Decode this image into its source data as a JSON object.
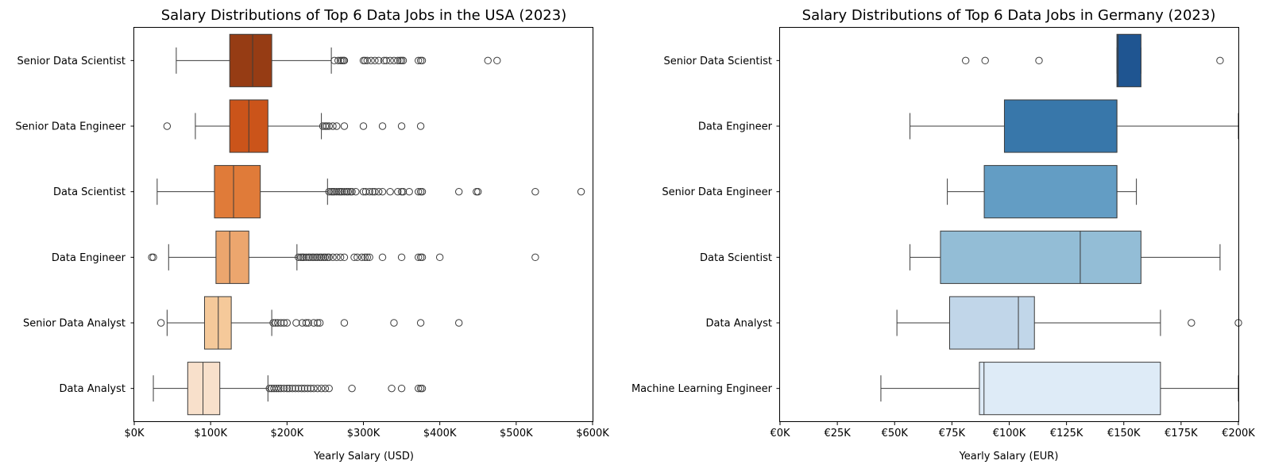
{
  "chart_data": [
    {
      "type": "boxplot",
      "title": "Salary Distributions of Top 6 Data Jobs in the USA (2023)",
      "xlabel": "Yearly Salary (USD)",
      "ylabel": "",
      "xlim": [
        0,
        600000
      ],
      "xticks": [
        0,
        100000,
        200000,
        300000,
        400000,
        500000,
        600000
      ],
      "xtick_labels": [
        "$0K",
        "$100K",
        "$200K",
        "$300K",
        "$400K",
        "$500K",
        "$600K"
      ],
      "grid": false,
      "boxes": [
        {
          "category": "Senior Data Scientist",
          "color": "#963c14",
          "whisker_low": 55000,
          "q1": 125000,
          "median": 155000,
          "q3": 180000,
          "whisker_high": 258000,
          "outliers": [
            262000,
            267000,
            270000,
            272000,
            274000,
            275000,
            300000,
            302000,
            305000,
            310000,
            315000,
            320000,
            327000,
            330000,
            335000,
            340000,
            345000,
            348000,
            350000,
            352000,
            372000,
            375000,
            377000,
            463000,
            475000
          ]
        },
        {
          "category": "Senior Data Engineer",
          "color": "#cb541a",
          "whisker_low": 80000,
          "q1": 125000,
          "median": 150000,
          "q3": 175000,
          "whisker_high": 245000,
          "outliers": [
            43000,
            247000,
            250000,
            252000,
            255000,
            260000,
            265000,
            275000,
            300000,
            325000,
            350000,
            375000
          ]
        },
        {
          "category": "Data Scientist",
          "color": "#e07b39",
          "whisker_low": 30000,
          "q1": 105000,
          "median": 130000,
          "q3": 165000,
          "whisker_high": 253000,
          "outliers": [
            255000,
            258000,
            260000,
            262000,
            265000,
            268000,
            270000,
            272000,
            275000,
            278000,
            280000,
            283000,
            285000,
            290000,
            300000,
            303000,
            308000,
            312000,
            315000,
            320000,
            325000,
            335000,
            345000,
            350000,
            352000,
            360000,
            372000,
            375000,
            377000,
            425000,
            448000,
            450000,
            525000,
            585000
          ]
        },
        {
          "category": "Data Engineer",
          "color": "#eca66e",
          "whisker_low": 45000,
          "q1": 107000,
          "median": 125000,
          "q3": 150000,
          "whisker_high": 213000,
          "outliers": [
            23000,
            25000,
            215000,
            218000,
            220000,
            222000,
            225000,
            228000,
            230000,
            233000,
            235000,
            238000,
            240000,
            243000,
            245000,
            248000,
            250000,
            253000,
            255000,
            260000,
            265000,
            270000,
            275000,
            288000,
            292000,
            298000,
            302000,
            305000,
            308000,
            325000,
            350000,
            372000,
            375000,
            377000,
            400000,
            525000
          ]
        },
        {
          "category": "Senior Data Analyst",
          "color": "#f5c99a",
          "whisker_low": 43000,
          "q1": 92000,
          "median": 110000,
          "q3": 127000,
          "whisker_high": 180000,
          "outliers": [
            35000,
            182000,
            185000,
            188000,
            192000,
            196000,
            200000,
            212000,
            220000,
            225000,
            228000,
            235000,
            240000,
            243000,
            275000,
            340000,
            375000,
            425000
          ]
        },
        {
          "category": "Data Analyst",
          "color": "#f8e0cb",
          "whisker_low": 25000,
          "q1": 70000,
          "median": 90000,
          "q3": 112000,
          "whisker_high": 175000,
          "outliers": [
            177000,
            180000,
            183000,
            186000,
            189000,
            192000,
            196000,
            200000,
            203000,
            207000,
            211000,
            215000,
            219000,
            223000,
            227000,
            231000,
            235000,
            240000,
            245000,
            250000,
            255000,
            285000,
            337000,
            350000,
            372000,
            375000,
            377000
          ]
        }
      ]
    },
    {
      "type": "boxplot",
      "title": "Salary Distributions of Top 6 Data Jobs in Germany (2023)",
      "xlabel": "Yearly Salary (EUR)",
      "ylabel": "",
      "xlim": [
        0,
        200000
      ],
      "xticks": [
        0,
        25000,
        50000,
        75000,
        100000,
        125000,
        150000,
        175000,
        200000
      ],
      "xtick_labels": [
        "€0K",
        "€25K",
        "€50K",
        "€75K",
        "€100K",
        "€125K",
        "€150K",
        "€175K",
        "€200K"
      ],
      "grid": false,
      "boxes": [
        {
          "category": "Senior Data Scientist",
          "color": "#1f5591",
          "whisker_low": 147000,
          "q1": 147000,
          "median": 147500,
          "q3": 157500,
          "whisker_high": 157500,
          "outliers": [
            81000,
            89500,
            113000,
            192000
          ]
        },
        {
          "category": "Data Engineer",
          "color": "#3877aa",
          "whisker_low": 56700,
          "q1": 97900,
          "median": 147000,
          "q3": 147000,
          "whisker_high": 200000,
          "outliers": []
        },
        {
          "category": "Senior Data Engineer",
          "color": "#639dc4",
          "whisker_low": 73000,
          "q1": 89100,
          "median": 147000,
          "q3": 147000,
          "whisker_high": 155500,
          "outliers": []
        },
        {
          "category": "Data Scientist",
          "color": "#93bdd6",
          "whisker_low": 56700,
          "q1": 70000,
          "median": 131000,
          "q3": 157500,
          "whisker_high": 192000,
          "outliers": []
        },
        {
          "category": "Data Analyst",
          "color": "#c1d6e9",
          "whisker_low": 51000,
          "q1": 74000,
          "median": 104000,
          "q3": 111000,
          "whisker_high": 166000,
          "outliers": [
            179500,
            200000
          ]
        },
        {
          "category": "Machine Learning Engineer",
          "color": "#deebf7",
          "whisker_low": 44000,
          "q1": 87000,
          "median": 89000,
          "q3": 166000,
          "whisker_high": 200000,
          "outliers": []
        }
      ]
    }
  ]
}
